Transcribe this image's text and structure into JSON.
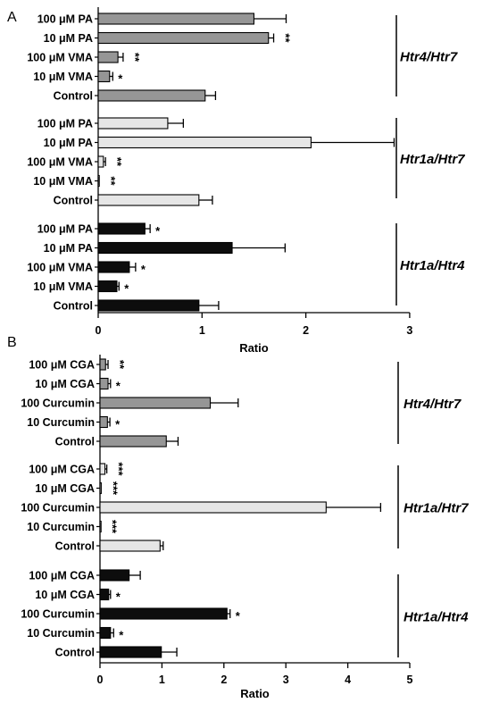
{
  "chart_data": [
    {
      "type": "bar",
      "orientation": "horizontal",
      "panel": "A",
      "xlabel": "Ratio",
      "xlim": [
        0,
        3
      ],
      "xticks": [
        0,
        1,
        2,
        3
      ],
      "groups": [
        {
          "name": "Htr4/Htr7",
          "color": "#969696",
          "bars": [
            {
              "label": "100 μM PA",
              "value": 1.5,
              "error": 0.31,
              "sig": ""
            },
            {
              "label": "10 μM PA",
              "value": 1.64,
              "error": 0.05,
              "sig": "**"
            },
            {
              "label": "100 μM VMA",
              "value": 0.19,
              "error": 0.05,
              "sig": "**"
            },
            {
              "label": "10 μM VMA",
              "value": 0.11,
              "error": 0.03,
              "sig": "*"
            },
            {
              "label": "Control",
              "value": 1.03,
              "error": 0.1,
              "sig": ""
            }
          ]
        },
        {
          "name": "Htr1a/Htr7",
          "color": "#e6e6e6",
          "bars": [
            {
              "label": "100 μM PA",
              "value": 0.67,
              "error": 0.15,
              "sig": ""
            },
            {
              "label": "10 μM PA",
              "value": 2.05,
              "error": 0.8,
              "sig": ""
            },
            {
              "label": "100 μM VMA",
              "value": 0.05,
              "error": 0.02,
              "sig": "**"
            },
            {
              "label": "10 μM VMA",
              "value": 0.01,
              "error": 0.0,
              "sig": "**"
            },
            {
              "label": "Control",
              "value": 0.97,
              "error": 0.13,
              "sig": ""
            }
          ]
        },
        {
          "name": "Htr1a/Htr4",
          "color": "#0d0d0d",
          "bars": [
            {
              "label": "100 μM PA",
              "value": 0.45,
              "error": 0.05,
              "sig": "*"
            },
            {
              "label": "10 μM PA",
              "value": 1.29,
              "error": 0.51,
              "sig": ""
            },
            {
              "label": "100 μM VMA",
              "value": 0.3,
              "error": 0.06,
              "sig": "*"
            },
            {
              "label": "10 μM VMA",
              "value": 0.18,
              "error": 0.02,
              "sig": "*"
            },
            {
              "label": "Control",
              "value": 0.97,
              "error": 0.19,
              "sig": ""
            }
          ]
        }
      ]
    },
    {
      "type": "bar",
      "orientation": "horizontal",
      "panel": "B",
      "xlabel": "Ratio",
      "xlim": [
        0,
        5
      ],
      "xticks": [
        0,
        1,
        2,
        3,
        4,
        5
      ],
      "groups": [
        {
          "name": "Htr4/Htr7",
          "color": "#969696",
          "bars": [
            {
              "label": "100 μM CGA",
              "value": 0.09,
              "error": 0.04,
              "sig": "**"
            },
            {
              "label": "10 μM CGA",
              "value": 0.13,
              "error": 0.04,
              "sig": "*"
            },
            {
              "label": "100 Curcumin",
              "value": 1.78,
              "error": 0.45,
              "sig": ""
            },
            {
              "label": "10 Curcumin",
              "value": 0.12,
              "error": 0.04,
              "sig": "*"
            },
            {
              "label": "Control",
              "value": 1.07,
              "error": 0.19,
              "sig": ""
            }
          ]
        },
        {
          "name": "Htr1a/Htr7",
          "color": "#e6e6e6",
          "bars": [
            {
              "label": "100 μM CGA",
              "value": 0.08,
              "error": 0.03,
              "sig": "***"
            },
            {
              "label": "10 μM CGA",
              "value": 0.02,
              "error": 0.0,
              "sig": "***"
            },
            {
              "label": "100 Curcumin",
              "value": 3.65,
              "error": 0.88,
              "sig": ""
            },
            {
              "label": "10 Curcumin",
              "value": 0.01,
              "error": 0.0,
              "sig": "***"
            },
            {
              "label": "Control",
              "value": 0.97,
              "error": 0.05,
              "sig": ""
            }
          ]
        },
        {
          "name": "Htr1a/Htr4",
          "color": "#0d0d0d",
          "bars": [
            {
              "label": "100 μM CGA",
              "value": 0.47,
              "error": 0.18,
              "sig": ""
            },
            {
              "label": "10 μM CGA",
              "value": 0.14,
              "error": 0.03,
              "sig": "*"
            },
            {
              "label": "100 Curcumin",
              "value": 2.05,
              "error": 0.05,
              "sig": "*"
            },
            {
              "label": "10 Curcumin",
              "value": 0.17,
              "error": 0.05,
              "sig": "*"
            },
            {
              "label": "Control",
              "value": 0.99,
              "error": 0.25,
              "sig": ""
            }
          ]
        }
      ]
    }
  ]
}
